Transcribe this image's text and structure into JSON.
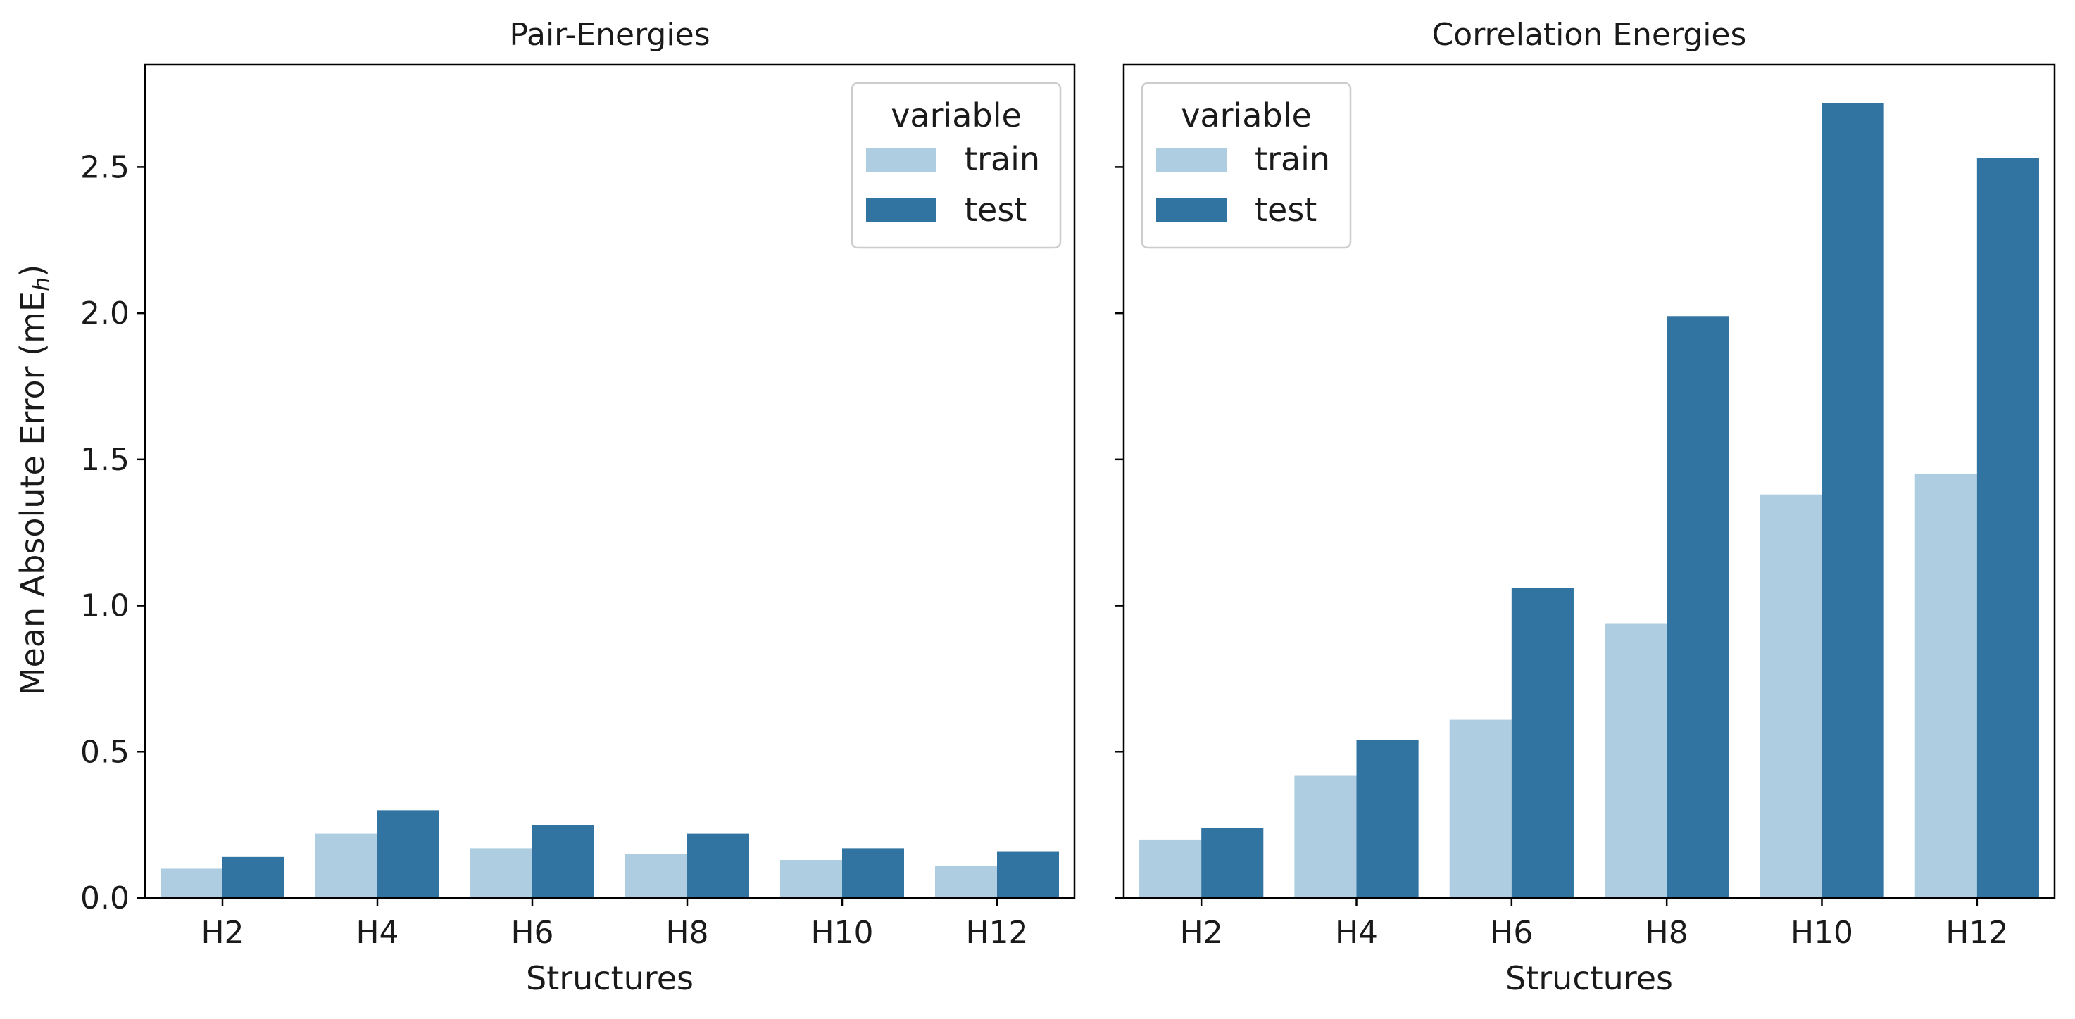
{
  "colors": {
    "train": "#aecde1",
    "test": "#3274a1",
    "axis": "#000000",
    "legend_border": "#cccccc"
  },
  "ylabel": "Mean Absolute Error (mE",
  "ylabel_sub": "h",
  "ylabel_close": ")",
  "chart_data": [
    {
      "type": "bar",
      "title": "Pair-Energies",
      "xlabel": "Structures",
      "categories": [
        "H2",
        "H4",
        "H6",
        "H8",
        "H10",
        "H12"
      ],
      "ylim": [
        0,
        2.85
      ],
      "yticks": [
        0.0,
        0.5,
        1.0,
        1.5,
        2.0,
        2.5
      ],
      "ytick_labels": [
        "0.0",
        "0.5",
        "1.0",
        "1.5",
        "2.0",
        "2.5"
      ],
      "legend": {
        "title": "variable",
        "position": "top-right",
        "entries": [
          "train",
          "test"
        ]
      },
      "series": [
        {
          "name": "train",
          "values": [
            0.1,
            0.22,
            0.17,
            0.15,
            0.13,
            0.11
          ]
        },
        {
          "name": "test",
          "values": [
            0.14,
            0.3,
            0.25,
            0.22,
            0.17,
            0.16
          ]
        }
      ]
    },
    {
      "type": "bar",
      "title": "Correlation Energies",
      "xlabel": "Structures",
      "categories": [
        "H2",
        "H4",
        "H6",
        "H8",
        "H10",
        "H12"
      ],
      "ylim": [
        0,
        2.85
      ],
      "yticks": [
        0.0,
        0.5,
        1.0,
        1.5,
        2.0,
        2.5
      ],
      "legend": {
        "title": "variable",
        "position": "top-left",
        "entries": [
          "train",
          "test"
        ]
      },
      "series": [
        {
          "name": "train",
          "values": [
            0.2,
            0.42,
            0.61,
            0.94,
            1.38,
            1.45
          ]
        },
        {
          "name": "test",
          "values": [
            0.24,
            0.54,
            1.06,
            1.99,
            2.72,
            2.53
          ]
        }
      ]
    }
  ]
}
